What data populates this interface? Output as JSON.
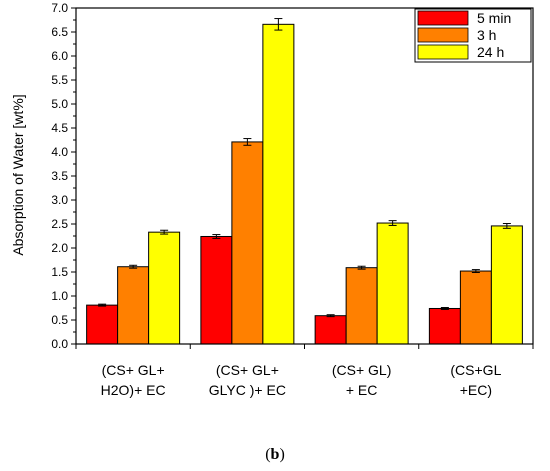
{
  "caption": {
    "open": "(",
    "letter": "b",
    "close": ")"
  },
  "colors": {
    "5min": "#ff0000",
    "3h": "#ff8000",
    "24h": "#ffff00",
    "axis": "#000000"
  },
  "chart_data": {
    "type": "bar",
    "ylabel": "Absorption of Water [wt%]",
    "xlabel": "",
    "ylim": [
      0,
      7.0
    ],
    "yticks": [
      "0.0",
      "0.5",
      "1.0",
      "1.5",
      "2.0",
      "2.5",
      "3.0",
      "3.5",
      "4.0",
      "4.5",
      "5.0",
      "5.5",
      "6.0",
      "6.5",
      "7.0"
    ],
    "categories": [
      [
        "(CS+ GL+",
        "H2O)+ EC"
      ],
      [
        "(CS+ GL+",
        "GLYC )+ EC"
      ],
      [
        "(CS+ GL)",
        "+ EC"
      ],
      [
        "(CS+GL",
        "+EC)"
      ]
    ],
    "series": [
      {
        "name": "5 min",
        "values": [
          0.81,
          2.24,
          0.59,
          0.74
        ],
        "errors": [
          0.02,
          0.04,
          0.02,
          0.02
        ]
      },
      {
        "name": "3 h",
        "values": [
          1.61,
          4.21,
          1.59,
          1.52
        ],
        "errors": [
          0.03,
          0.07,
          0.03,
          0.03
        ]
      },
      {
        "name": "24 h",
        "values": [
          2.33,
          6.66,
          2.52,
          2.46
        ],
        "errors": [
          0.04,
          0.12,
          0.05,
          0.05
        ]
      }
    ],
    "legend_position": "top-right",
    "grid": false
  }
}
